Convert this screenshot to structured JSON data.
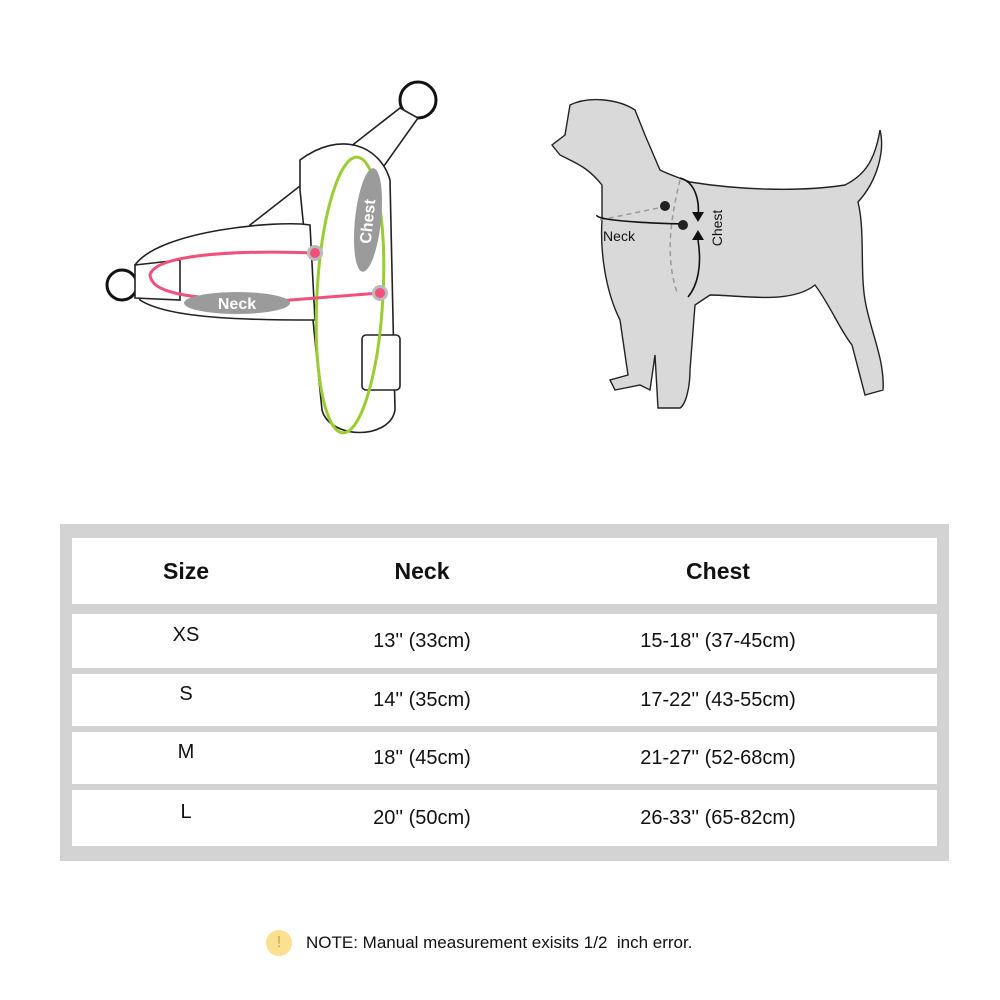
{
  "harness_diagram": {
    "neck_label": "Neck",
    "chest_label": "Chest",
    "colors": {
      "neck": "#f0507a",
      "chest": "#9acd32",
      "label_bg": "#9b9b9b"
    }
  },
  "dog_diagram": {
    "neck_label": "Neck",
    "chest_label": "Chest",
    "colors": {
      "body": "#d9d9d9"
    }
  },
  "size_table": {
    "headers": [
      "Size",
      "Neck",
      "Chest"
    ],
    "rows": [
      [
        "XS",
        "13'' (33cm)",
        "15-18'' (37-45cm)"
      ],
      [
        "S",
        "14'' (35cm)",
        "17-22'' (43-55cm)"
      ],
      [
        "M",
        "18'' (45cm)",
        "21-27'' (52-68cm)"
      ],
      [
        "L",
        "20'' (50cm)",
        "26-33'' (65-82cm)"
      ]
    ]
  },
  "note": {
    "icon": "exclamation-icon",
    "icon_glyph": "!",
    "text": "NOTE: Manual measurement exisits 1/2  inch error."
  }
}
